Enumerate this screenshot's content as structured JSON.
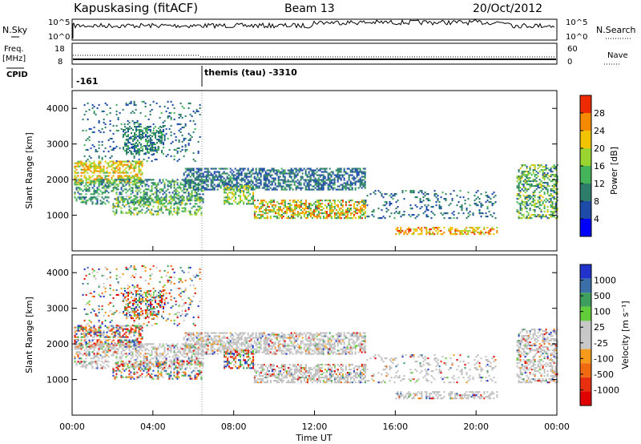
{
  "header": {
    "station": "Kapuskasing (fitACF)",
    "beam": "Beam 13",
    "date": "20/Oct/2012"
  },
  "top_panels": {
    "nsky_label": "N.Sky",
    "nsearch_label": "N.Search",
    "noise_ticks_left": [
      "10^5",
      "10^0"
    ],
    "noise_ticks_right": [
      "10^5",
      "10^0"
    ],
    "freq_label": "Freq.",
    "freq_unit": "[MHz]",
    "freq_ticks": [
      "18",
      "8"
    ],
    "nave_label": "Nave",
    "nave_ticks": [
      "60",
      "0"
    ],
    "cpid_label": "CPID",
    "cpid_entries": [
      {
        "text": "-161",
        "start_hour": 0
      },
      {
        "text": "themis (tau) -3310",
        "start_hour": 6.5
      }
    ]
  },
  "colors": {
    "power_scale": [
      "#0000ff",
      "#1e4aa8",
      "#2e7d6b",
      "#45b35a",
      "#9ad430",
      "#f2c300",
      "#f58a00",
      "#ee2a00"
    ],
    "velocity_scale": [
      "#2233cc",
      "#3a6fa8",
      "#3e9e5e",
      "#62cc3a",
      "#c8c8c8",
      "#c8c8c8",
      "#f59a1a",
      "#f06a10",
      "#e83010",
      "#e00000"
    ],
    "ground_scatter": "#c0c0c0"
  },
  "chart_data": [
    {
      "type": "heatmap",
      "panel": "power",
      "xlabel": "",
      "ylabel": "Slant Range [km]",
      "xlim_hours": [
        0,
        24
      ],
      "ylim": [
        0,
        4500
      ],
      "y_ticks": [
        1000,
        2000,
        3000,
        4000
      ],
      "colorbar_label": "Power [dB]",
      "colorbar_ticks": [
        "4",
        "8",
        "12",
        "16",
        "20",
        "24",
        "28"
      ],
      "colorbar_range": [
        0,
        30
      ]
    },
    {
      "type": "heatmap",
      "panel": "velocity",
      "xlabel": "Time UT",
      "ylabel": "Slant Range [km]",
      "xlim_hours": [
        0,
        24
      ],
      "ylim": [
        0,
        4500
      ],
      "y_ticks": [
        1000,
        2000,
        3000,
        4000
      ],
      "x_ticks": [
        "00:00",
        "04:00",
        "08:00",
        "12:00",
        "16:00",
        "20:00",
        "00:00"
      ],
      "colorbar_label": "Velocity [m s⁻¹]",
      "colorbar_ticks": [
        "1000",
        "500",
        "100",
        "25",
        "-25",
        "-100",
        "-500",
        "-1000"
      ]
    }
  ]
}
